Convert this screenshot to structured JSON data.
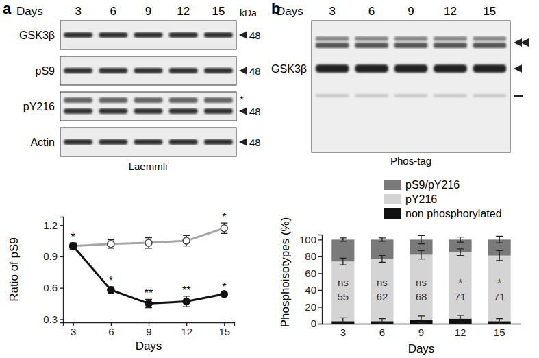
{
  "chart_data": [
    {
      "type": "line",
      "x_label": "Days",
      "y_label": "Ratio of pS9",
      "x": [
        3,
        6,
        9,
        12,
        15
      ],
      "xlim": [
        2.2,
        15.8
      ],
      "xticks": [
        3,
        6,
        9,
        12,
        15
      ],
      "ylim": [
        0.27,
        1.28
      ],
      "yticks": [
        0.3,
        0.6,
        0.9,
        1.2
      ],
      "series": [
        {
          "color": "#a6a6a6",
          "marker": "open-circle",
          "line_style": "solid",
          "values": [
            1.0,
            1.02,
            1.03,
            1.05,
            1.17
          ],
          "errors": [
            0.03,
            0.04,
            0.05,
            0.05,
            0.05
          ],
          "annotations": [
            "*",
            null,
            null,
            null,
            "*"
          ]
        },
        {
          "color": "#111111",
          "marker": "circle",
          "line_style": "solid",
          "values": [
            1.0,
            0.58,
            0.45,
            0.47,
            0.54
          ],
          "errors": [
            0.02,
            0.03,
            0.04,
            0.05,
            0.01
          ],
          "annotations": [
            null,
            "*",
            "**",
            "**",
            "*"
          ]
        }
      ]
    },
    {
      "type": "bar",
      "stacked": true,
      "x_label": "Days",
      "y_label": "Phosphoisotypes (%)",
      "categories": [
        "3",
        "6",
        "9",
        "12",
        "15"
      ],
      "ylim": [
        0,
        106
      ],
      "yticks": [
        0,
        20,
        40,
        60,
        80,
        100
      ],
      "legend": "top-left",
      "series": [
        {
          "name": "non phosphorylated",
          "color": "#111111",
          "values": [
            3,
            3,
            5,
            6,
            3
          ],
          "errors": [
            4,
            3,
            4,
            4,
            3
          ]
        },
        {
          "name": "pY216",
          "color": "#d4d4d4",
          "values": [
            71,
            74,
            77,
            79,
            78
          ],
          "errors": [
            4,
            4,
            5,
            4,
            6
          ]
        },
        {
          "name": "pS9/pY216",
          "color": "#7a7a7a",
          "values": [
            26,
            23,
            18,
            15,
            19
          ],
          "errors": [
            2,
            2,
            5,
            3,
            4
          ]
        }
      ],
      "significance": [
        "ns",
        "ns",
        "ns",
        "*",
        "*"
      ],
      "annotation_values": [
        55,
        62,
        68,
        71,
        71
      ]
    }
  ],
  "blots": [
    {
      "panel": "a",
      "x_label": "Days",
      "lanes": [
        "3",
        "6",
        "9",
        "12",
        "15"
      ],
      "unit": "kDa",
      "rows": [
        {
          "label": "GSK3β",
          "marker": 48
        },
        {
          "label": "pS9",
          "marker": 48
        },
        {
          "label": "pY216",
          "marker": 48,
          "annotation": "*"
        },
        {
          "label": "Actin",
          "marker": 48
        }
      ],
      "caption": "Laemmli"
    },
    {
      "panel": "b",
      "x_label": "Days",
      "lanes": [
        "3",
        "6",
        "9",
        "12",
        "15"
      ],
      "rows": [
        {
          "label": "GSK3β"
        }
      ],
      "caption": "Phos-tag"
    }
  ]
}
